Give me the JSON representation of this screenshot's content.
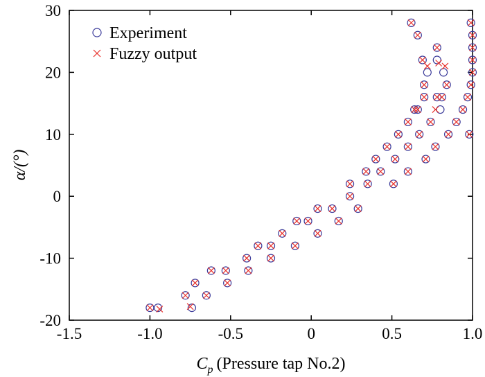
{
  "chart_data": {
    "type": "scatter",
    "title": "",
    "xlabel": {
      "symbol": "C",
      "subscript": "p",
      "text": "(Pressure tap No.2)"
    },
    "ylabel": "α/(°)",
    "xlim": [
      -1.5,
      1.0
    ],
    "ylim": [
      -20,
      30
    ],
    "xticks": [
      -1.5,
      -1.0,
      -0.5,
      0,
      0.5,
      1.0
    ],
    "xtick_labels": [
      "-1.5",
      "-1.0",
      "-0.5",
      "0",
      "0.5",
      "1.0"
    ],
    "yticks": [
      -20,
      -10,
      0,
      10,
      20,
      30
    ],
    "ytick_labels": [
      "-20",
      "-10",
      "0",
      "10",
      "20",
      "30"
    ],
    "legend_position": "top-left",
    "series": [
      {
        "name": "Experiment",
        "marker": "circle",
        "color": "#3b3b9a",
        "x": [
          -1.0,
          -0.95,
          -0.78,
          -0.72,
          -0.74,
          -0.65,
          -0.62,
          -0.53,
          -0.52,
          -0.4,
          -0.39,
          -0.33,
          -0.25,
          -0.25,
          -0.18,
          -0.1,
          -0.09,
          -0.02,
          0.04,
          0.04,
          0.13,
          0.17,
          0.24,
          0.24,
          0.29,
          0.34,
          0.35,
          0.4,
          0.43,
          0.47,
          0.51,
          0.52,
          0.54,
          0.6,
          0.6,
          0.64,
          0.67,
          0.6,
          0.71,
          0.74,
          0.77,
          0.8,
          0.81,
          0.7,
          0.66,
          0.7,
          0.72,
          0.78,
          0.82,
          0.84,
          0.85,
          0.9,
          0.94,
          0.97,
          0.99,
          1.0,
          1.0,
          1.0,
          0.99,
          1.0,
          0.98,
          0.62,
          0.66,
          0.69,
          0.78,
          0.78
        ],
        "y": [
          -18,
          -18,
          -16,
          -14,
          -18,
          -16,
          -12,
          -12,
          -14,
          -10,
          -12,
          -8,
          -10,
          -8,
          -6,
          -8,
          -4,
          -4,
          -6,
          -2,
          -2,
          -4,
          2,
          0,
          -2,
          4,
          2,
          6,
          4,
          8,
          2,
          6,
          10,
          8,
          12,
          14,
          10,
          4,
          6,
          12,
          8,
          14,
          16,
          16,
          14,
          18,
          20,
          22,
          20,
          18,
          10,
          12,
          14,
          16,
          18,
          20,
          24,
          26,
          28,
          22,
          10,
          28,
          26,
          22,
          24,
          16
        ]
      },
      {
        "name": "Fuzzy output",
        "marker": "x",
        "color": "#e8302a",
        "x": [
          -1.0,
          -0.94,
          -0.78,
          -0.72,
          -0.75,
          -0.65,
          -0.62,
          -0.53,
          -0.52,
          -0.4,
          -0.39,
          -0.33,
          -0.25,
          -0.25,
          -0.18,
          -0.1,
          -0.09,
          -0.02,
          0.04,
          0.04,
          0.13,
          0.17,
          0.24,
          0.24,
          0.29,
          0.34,
          0.35,
          0.4,
          0.43,
          0.47,
          0.51,
          0.52,
          0.54,
          0.6,
          0.6,
          0.64,
          0.67,
          0.6,
          0.71,
          0.74,
          0.77,
          0.77,
          0.81,
          0.7,
          0.66,
          0.7,
          0.72,
          0.79,
          0.83,
          0.84,
          0.85,
          0.9,
          0.94,
          0.97,
          0.99,
          1.0,
          1.0,
          1.0,
          0.99,
          1.0,
          0.98,
          0.62,
          0.66,
          0.69,
          0.78,
          0.78
        ],
        "y": [
          -18,
          -18.2,
          -16,
          -14,
          -17.8,
          -16,
          -12,
          -12,
          -14,
          -10,
          -12,
          -8,
          -10,
          -8,
          -6,
          -8,
          -4,
          -4,
          -6,
          -2,
          -2,
          -4,
          2,
          0,
          -2,
          4,
          2,
          6,
          4,
          8,
          2,
          6,
          10,
          8,
          12,
          14,
          10,
          4,
          6,
          12,
          8,
          14,
          16,
          16,
          14,
          18,
          21,
          21.5,
          21,
          18,
          10,
          12,
          14,
          16,
          18,
          20,
          24,
          26,
          28,
          22,
          10,
          28,
          26,
          22,
          24,
          16
        ]
      }
    ]
  }
}
